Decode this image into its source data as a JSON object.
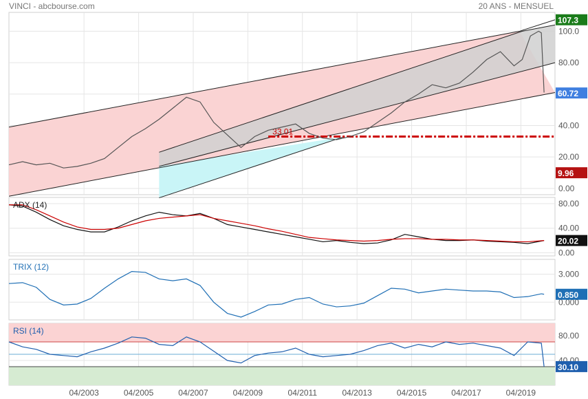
{
  "header": {
    "left": "VINCI - abcbourse.com",
    "right": "20 ANS - MENSUEL"
  },
  "colors": {
    "price_line": "#555555",
    "adx": "#111111",
    "adx_avg": "#cc0000",
    "trix": "#1f6fb5",
    "rsi": "#1f5fae",
    "channel_outer": "#fad3d3",
    "channel_inner": "#d0d0d0",
    "channel_support": "#c9f5f7",
    "support_dash": "#cc0000",
    "rsi_overbought_zone": "#fbd3d3",
    "rsi_oversold_zone": "#d6ebd2",
    "badge_green": "#1a7c1a",
    "badge_blue": "#3f7fe0",
    "badge_red": "#b51212",
    "badge_black": "#111111",
    "badge_trix": "#1f6fb5",
    "badge_rsi": "#1f5fae"
  },
  "x_axis": {
    "ticks": [
      "04/2003",
      "04/2005",
      "04/2007",
      "04/2009",
      "04/2011",
      "04/2013",
      "04/2015",
      "04/2017",
      "04/2019"
    ]
  },
  "chart_data": [
    {
      "type": "line",
      "panel": "price",
      "title": "",
      "ylim": [
        -4,
        112
      ],
      "y_ticks": [
        "100.0",
        "80.00",
        "60.00",
        "40.00",
        "20.00",
        "0.00"
      ],
      "y_tick_values": [
        100,
        80,
        60,
        40,
        20,
        0
      ],
      "badges": [
        {
          "label": "107.3",
          "value": 107.3,
          "color_key": "badge_green"
        },
        {
          "label": "60.72",
          "value": 60.72,
          "color_key": "badge_blue"
        },
        {
          "label": "9.96",
          "value": 9.96,
          "color_key": "badge_red"
        }
      ],
      "annotation": {
        "label": "33.01",
        "value": 33.01,
        "start": 2010.0,
        "end": 2020.5
      },
      "channels": {
        "outer_upper": [
          [
            2000.5,
            39
          ],
          [
            2019.2,
            100
          ],
          [
            2020.5,
            107.3
          ]
        ],
        "outer_lower": [
          [
            2000.5,
            -5
          ],
          [
            2020.5,
            61
          ]
        ],
        "inner_upper": [
          [
            2006.0,
            23
          ],
          [
            2019.3,
            100
          ],
          [
            2020.5,
            104
          ]
        ],
        "inner_lower": [
          [
            2006.0,
            14
          ],
          [
            2020.5,
            80
          ]
        ],
        "support_lower": [
          [
            2006.0,
            -6
          ],
          [
            2012.8,
            33.01
          ]
        ]
      },
      "series": [
        {
          "color_key": "price_line",
          "x": [
            2000.5,
            2001,
            2001.5,
            2002,
            2002.5,
            2003,
            2003.5,
            2004,
            2004.5,
            2005,
            2005.5,
            2006,
            2006.5,
            2007,
            2007.5,
            2008,
            2008.5,
            2009,
            2009.5,
            2010,
            2010.5,
            2011,
            2011.5,
            2012,
            2012.5,
            2013,
            2013.5,
            2014,
            2014.5,
            2015,
            2015.5,
            2016,
            2016.5,
            2017,
            2017.5,
            2018,
            2018.5,
            2019,
            2019.3,
            2019.6,
            2019.9,
            2020.0,
            2020.1
          ],
          "y": [
            15,
            17,
            15,
            16,
            13,
            14,
            16,
            19,
            26,
            33,
            38,
            44,
            51,
            58,
            55,
            42,
            34,
            26,
            33,
            37,
            39,
            41,
            35,
            32,
            31,
            33,
            36,
            42,
            48,
            55,
            60,
            66,
            64,
            67,
            74,
            82,
            87,
            78,
            82,
            97,
            100,
            99,
            61
          ]
        }
      ]
    },
    {
      "type": "line",
      "panel": "adx",
      "title": "ADX (14)",
      "ylim": [
        -5,
        90
      ],
      "y_ticks": [
        "80.00",
        "40.00",
        "0.00"
      ],
      "y_tick_values": [
        80,
        40,
        0
      ],
      "badges": [
        {
          "label": "20.02",
          "value": 20.02,
          "color_key": "badge_black"
        }
      ],
      "series": [
        {
          "name": "ADX",
          "color_key": "adx",
          "x": [
            2000.5,
            2001.0,
            2001.5,
            2002.0,
            2002.5,
            2003.0,
            2003.5,
            2004.0,
            2004.5,
            2005.0,
            2005.5,
            2006.0,
            2006.5,
            2007.0,
            2007.5,
            2008.0,
            2008.5,
            2009.0,
            2009.5,
            2010.0,
            2010.5,
            2011.0,
            2011.5,
            2012.0,
            2012.5,
            2013.0,
            2013.5,
            2014.0,
            2014.5,
            2015.0,
            2015.5,
            2016.0,
            2016.5,
            2017.0,
            2017.5,
            2018.0,
            2018.5,
            2019.0,
            2019.5,
            2020.1
          ],
          "y": [
            78,
            76,
            66,
            54,
            44,
            38,
            34,
            34,
            42,
            52,
            60,
            66,
            62,
            60,
            64,
            56,
            46,
            42,
            38,
            34,
            30,
            26,
            22,
            18,
            20,
            17,
            15,
            16,
            21,
            30,
            26,
            22,
            20,
            20,
            21,
            19,
            18,
            17,
            15,
            20
          ]
        },
        {
          "name": "ADX avg",
          "color_key": "adx_avg",
          "x": [
            2000.5,
            2001.0,
            2001.5,
            2002.0,
            2002.5,
            2003.0,
            2003.5,
            2004.0,
            2004.5,
            2005.0,
            2005.5,
            2006.0,
            2006.5,
            2007.0,
            2007.5,
            2008.0,
            2008.5,
            2009.0,
            2009.5,
            2010.0,
            2010.5,
            2011.0,
            2011.5,
            2012.0,
            2012.5,
            2013.0,
            2013.5,
            2014.0,
            2014.5,
            2015.0,
            2015.5,
            2016.0,
            2016.5,
            2017.0,
            2017.5,
            2018.0,
            2018.5,
            2019.0,
            2019.5,
            2020.1
          ],
          "y": [
            78,
            78,
            70,
            60,
            50,
            42,
            38,
            38,
            40,
            46,
            52,
            56,
            58,
            60,
            62,
            56,
            52,
            48,
            44,
            39,
            35,
            30,
            25,
            23,
            21,
            20,
            19,
            20,
            22,
            23,
            23,
            22,
            22,
            21,
            21,
            20,
            19,
            18,
            18,
            20
          ]
        }
      ]
    },
    {
      "type": "line",
      "panel": "trix",
      "title": "TRIX (12)",
      "ylim": [
        -1.9,
        4.6
      ],
      "y_ticks": [
        "3.000",
        "0.000"
      ],
      "y_tick_values": [
        3,
        0
      ],
      "badges": [
        {
          "label": "0.850",
          "value": 0.85,
          "color_key": "badge_trix"
        }
      ],
      "series": [
        {
          "color_key": "trix",
          "x": [
            2000.5,
            2001.0,
            2001.5,
            2002.0,
            2002.5,
            2003.0,
            2003.5,
            2004.0,
            2004.5,
            2005.0,
            2005.5,
            2006.0,
            2006.5,
            2007.0,
            2007.5,
            2008.0,
            2008.5,
            2009.0,
            2009.5,
            2010.0,
            2010.5,
            2011.0,
            2011.5,
            2012.0,
            2012.5,
            2013.0,
            2013.5,
            2014.0,
            2014.5,
            2015.0,
            2015.5,
            2016.0,
            2016.5,
            2017.0,
            2017.5,
            2018.0,
            2018.5,
            2019.0,
            2019.5,
            2020.0,
            2020.1
          ],
          "y": [
            2.0,
            2.1,
            1.6,
            0.3,
            -0.3,
            -0.2,
            0.4,
            1.5,
            2.5,
            3.3,
            3.2,
            2.5,
            2.3,
            2.5,
            1.8,
            0.0,
            -1.2,
            -1.6,
            -1.0,
            -0.3,
            -0.2,
            0.3,
            0.5,
            -0.2,
            -0.5,
            -0.4,
            -0.1,
            0.7,
            1.5,
            1.4,
            1.0,
            1.2,
            1.4,
            1.3,
            1.2,
            1.2,
            1.1,
            0.5,
            0.6,
            0.9,
            0.85
          ]
        }
      ]
    },
    {
      "type": "line",
      "panel": "rsi",
      "title": "RSI (14)",
      "ylim": [
        0,
        100
      ],
      "y_ticks": [
        "80.00",
        "40.00"
      ],
      "y_tick_values": [
        80,
        40
      ],
      "overbought": 70,
      "oversold": 30,
      "mid": 50,
      "badges": [
        {
          "label": "30.10",
          "value": 30.1,
          "color_key": "badge_rsi"
        }
      ],
      "series": [
        {
          "color_key": "rsi",
          "x": [
            2000.5,
            2001.0,
            2001.5,
            2002.0,
            2002.5,
            2003.0,
            2003.5,
            2004.0,
            2004.5,
            2005.0,
            2005.5,
            2006.0,
            2006.5,
            2007.0,
            2007.5,
            2008.0,
            2008.5,
            2009.0,
            2009.5,
            2010.0,
            2010.5,
            2011.0,
            2011.5,
            2012.0,
            2012.5,
            2013.0,
            2013.5,
            2014.0,
            2014.5,
            2015.0,
            2015.5,
            2016.0,
            2016.5,
            2017.0,
            2017.5,
            2018.0,
            2018.5,
            2019.0,
            2019.5,
            2020.0,
            2020.1
          ],
          "y": [
            70,
            62,
            58,
            50,
            48,
            46,
            54,
            60,
            68,
            78,
            76,
            66,
            64,
            78,
            70,
            55,
            40,
            36,
            48,
            52,
            54,
            60,
            50,
            46,
            48,
            50,
            56,
            64,
            68,
            60,
            66,
            62,
            70,
            66,
            68,
            64,
            60,
            48,
            70,
            68,
            30
          ]
        }
      ]
    }
  ]
}
